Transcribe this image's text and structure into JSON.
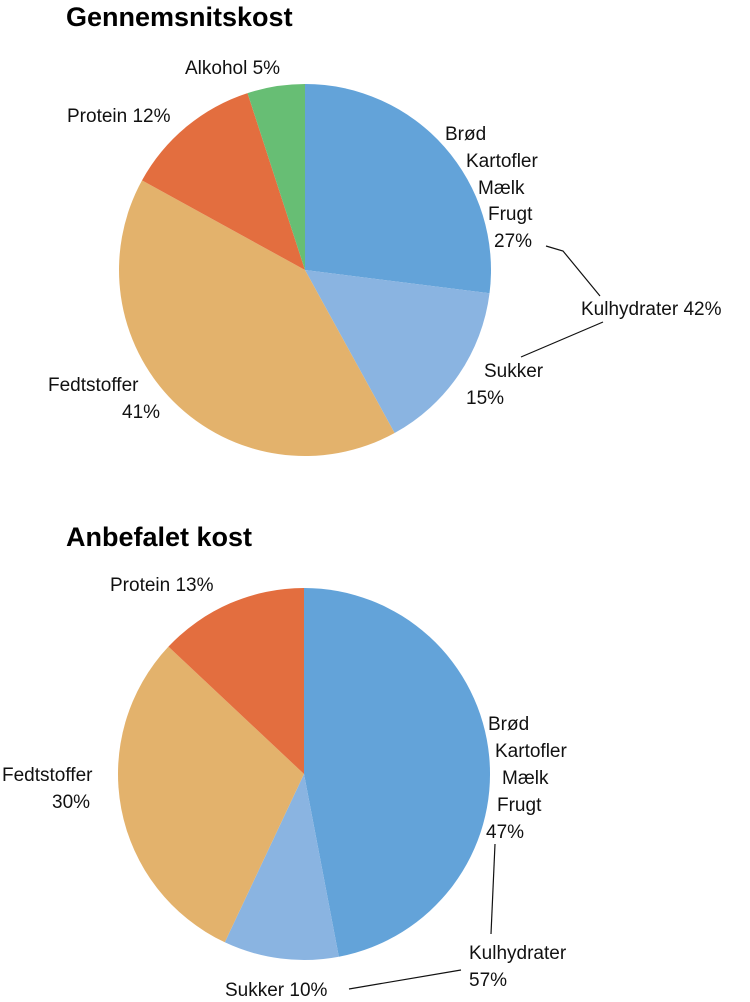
{
  "chart_data": [
    {
      "type": "pie",
      "title": "Gennemsnitskost",
      "slices": [
        {
          "label": "Brød Kartofler Mælk Frugt",
          "value": 27,
          "color": "#63A3D9"
        },
        {
          "label": "Sukker",
          "value": 15,
          "color": "#8AB4E1"
        },
        {
          "label": "Fedtstoffer",
          "value": 41,
          "color": "#E3B26C"
        },
        {
          "label": "Protein",
          "value": 12,
          "color": "#E36E3F"
        },
        {
          "label": "Alkohol",
          "value": 5,
          "color": "#67BE74"
        }
      ],
      "group_label": "Kulhydrater 42%",
      "text": {
        "brod": "Brød",
        "kartofler": "Kartofler",
        "maelk": "Mælk",
        "frugt": "Frugt",
        "pct_brod": "27%",
        "sukker": "Sukker",
        "pct_sukker": "15%",
        "fedt": "Fedtstoffer",
        "pct_fedt": "41%",
        "protein": "Protein 12%",
        "alkohol": "Alkohol 5%",
        "kulhydrater": "Kulhydrater 42%"
      }
    },
    {
      "type": "pie",
      "title": "Anbefalet kost",
      "slices": [
        {
          "label": "Brød Kartofler Mælk Frugt",
          "value": 47,
          "color": "#63A3D9"
        },
        {
          "label": "Sukker",
          "value": 10,
          "color": "#8AB4E1"
        },
        {
          "label": "Fedtstoffer",
          "value": 30,
          "color": "#E3B26C"
        },
        {
          "label": "Protein",
          "value": 13,
          "color": "#E36E3F"
        }
      ],
      "group_label": "Kulhydrater 57%",
      "text": {
        "brod": "Brød",
        "kartofler": "Kartofler",
        "maelk": "Mælk",
        "frugt": "Frugt",
        "pct_brod": "47%",
        "sukker": "Sukker 10%",
        "fedt": "Fedtstoffer",
        "pct_fedt": "30%",
        "protein": "Protein 13%",
        "kulhydrater": "Kulhydrater",
        "pct_kulhydrater": "57%"
      }
    }
  ]
}
